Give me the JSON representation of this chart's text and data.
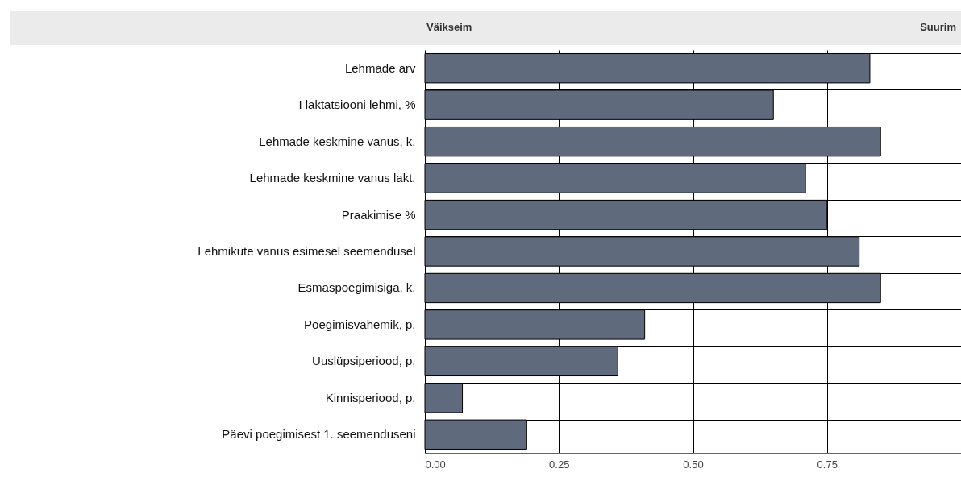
{
  "chart_data": {
    "type": "bar",
    "orientation": "horizontal",
    "categories": [
      "Lehmade arv",
      "I laktatsiooni lehmi, %",
      "Lehmade keskmine vanus, k.",
      "Lehmade keskmine vanus lakt.",
      "Praakimise %",
      "Lehmikute vanus esimesel seemendusel",
      "Esmaspoegimisiga, k.",
      "Poegimisvahemik, p.",
      "Uuslüpsiperiood, p.",
      "Kinnisperiood, p.",
      "Päevi poegimisest 1. seemenduseni"
    ],
    "values": [
      0.83,
      0.65,
      0.85,
      0.71,
      0.75,
      0.81,
      0.85,
      0.41,
      0.36,
      0.07,
      0.19
    ],
    "color": "#5f6a7d",
    "xlim": [
      0,
      1
    ],
    "xticks": [
      {
        "value": 0,
        "label": "0.00"
      },
      {
        "value": 0.25,
        "label": "0.25"
      },
      {
        "value": 0.5,
        "label": "0.50"
      },
      {
        "value": 0.75,
        "label": "0.75"
      }
    ],
    "grid": true,
    "annotations": [
      "Väikseim",
      "Suurim"
    ]
  }
}
